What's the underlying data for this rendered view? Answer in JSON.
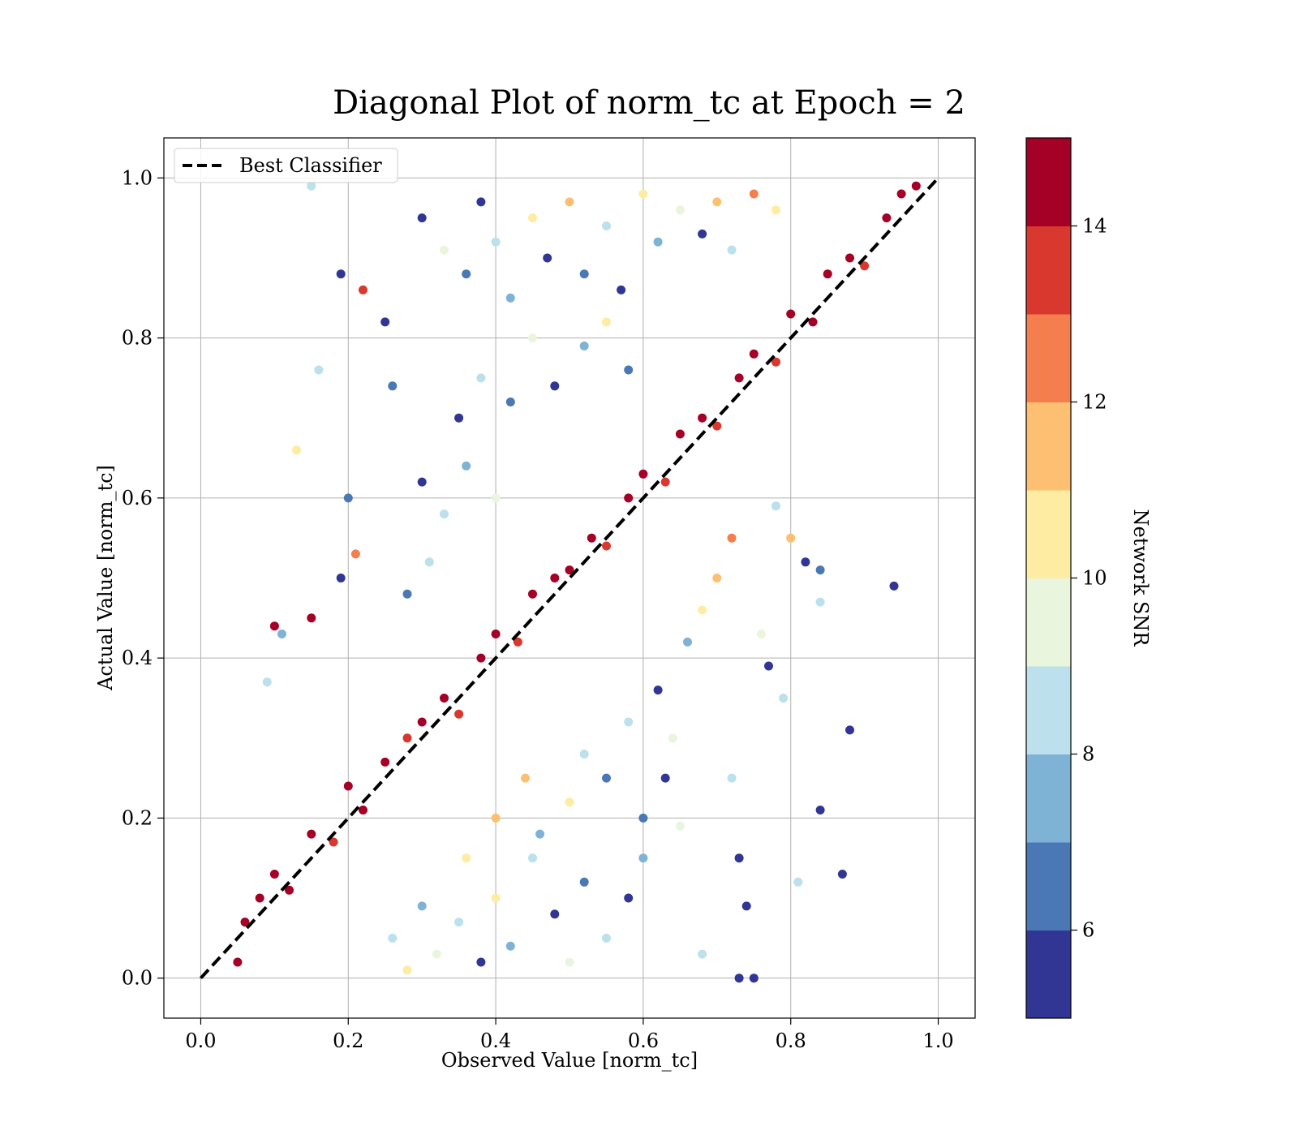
{
  "chart_data": {
    "type": "scatter",
    "title": "Diagonal Plot of norm_tc at Epoch = 2",
    "xlabel": "Observed Value [norm_tc]",
    "ylabel": "Actual Value [norm_tc]",
    "xlim": [
      -0.05,
      1.05
    ],
    "ylim": [
      -0.05,
      1.05
    ],
    "xticks": [
      0.0,
      0.2,
      0.4,
      0.6,
      0.8,
      1.0
    ],
    "yticks": [
      0.0,
      0.2,
      0.4,
      0.6,
      0.8,
      1.0
    ],
    "xtick_labels": [
      "0.0",
      "0.2",
      "0.4",
      "0.6",
      "0.8",
      "1.0"
    ],
    "ytick_labels": [
      "0.0",
      "0.2",
      "0.4",
      "0.6",
      "0.8",
      "1.0"
    ],
    "grid": true,
    "legend": {
      "placement": "upper-left",
      "entries": [
        "Best Classifier"
      ]
    },
    "reference_line": {
      "name": "Best Classifier",
      "style": "dashed",
      "color": "#000000",
      "x": [
        0.0,
        1.0
      ],
      "y": [
        0.0,
        1.0
      ]
    },
    "colorbar": {
      "label": "Network SNR",
      "range": [
        5,
        15
      ],
      "ticks": [
        6,
        8,
        10,
        12,
        14
      ],
      "tick_labels": [
        "6",
        "8",
        "10",
        "12",
        "14"
      ],
      "colors": [
        "#313695",
        "#4a78b5",
        "#7fb3d6",
        "#bce0ec",
        "#eaf5de",
        "#fdeca2",
        "#fdbf71",
        "#f57e4f",
        "#d8382e",
        "#a50026"
      ]
    },
    "series": [
      {
        "description": "scatter of predicted vs actual norm_tc colored by Network SNR; high-SNR points lie close to the diagonal, low-SNR points scatter widely",
        "points": [
          [
            0.05,
            0.02,
            14.8
          ],
          [
            0.06,
            0.07,
            14.6
          ],
          [
            0.08,
            0.1,
            14.9
          ],
          [
            0.1,
            0.13,
            14.2
          ],
          [
            0.12,
            0.11,
            14.7
          ],
          [
            0.15,
            0.18,
            14.5
          ],
          [
            0.18,
            0.17,
            13.6
          ],
          [
            0.2,
            0.24,
            14.9
          ],
          [
            0.22,
            0.21,
            14.3
          ],
          [
            0.25,
            0.27,
            14.8
          ],
          [
            0.28,
            0.3,
            13.8
          ],
          [
            0.3,
            0.32,
            14.7
          ],
          [
            0.33,
            0.35,
            14.9
          ],
          [
            0.35,
            0.33,
            13.2
          ],
          [
            0.38,
            0.4,
            14.6
          ],
          [
            0.4,
            0.43,
            14.8
          ],
          [
            0.43,
            0.42,
            13.9
          ],
          [
            0.45,
            0.48,
            14.7
          ],
          [
            0.48,
            0.5,
            14.9
          ],
          [
            0.5,
            0.51,
            14.4
          ],
          [
            0.53,
            0.55,
            14.8
          ],
          [
            0.55,
            0.54,
            13.5
          ],
          [
            0.58,
            0.6,
            14.9
          ],
          [
            0.6,
            0.63,
            14.6
          ],
          [
            0.63,
            0.62,
            13.7
          ],
          [
            0.65,
            0.68,
            14.8
          ],
          [
            0.68,
            0.7,
            14.9
          ],
          [
            0.7,
            0.69,
            13.4
          ],
          [
            0.73,
            0.75,
            14.7
          ],
          [
            0.75,
            0.78,
            14.9
          ],
          [
            0.78,
            0.77,
            13.9
          ],
          [
            0.8,
            0.83,
            14.8
          ],
          [
            0.83,
            0.82,
            14.2
          ],
          [
            0.85,
            0.88,
            14.9
          ],
          [
            0.88,
            0.9,
            14.6
          ],
          [
            0.9,
            0.89,
            13.6
          ],
          [
            0.93,
            0.95,
            14.8
          ],
          [
            0.95,
            0.98,
            14.9
          ],
          [
            0.97,
            0.99,
            14.5
          ],
          [
            0.15,
            0.99,
            8.2
          ],
          [
            0.19,
            0.88,
            5.3
          ],
          [
            0.22,
            0.86,
            13.4
          ],
          [
            0.25,
            0.82,
            5.5
          ],
          [
            0.26,
            0.74,
            6.1
          ],
          [
            0.13,
            0.66,
            10.8
          ],
          [
            0.2,
            0.6,
            6.4
          ],
          [
            0.21,
            0.53,
            12.8
          ],
          [
            0.19,
            0.5,
            5.6
          ],
          [
            0.15,
            0.45,
            14.5
          ],
          [
            0.1,
            0.44,
            14.6
          ],
          [
            0.11,
            0.43,
            7.2
          ],
          [
            0.09,
            0.37,
            8.3
          ],
          [
            0.16,
            0.76,
            8.1
          ],
          [
            0.3,
            0.95,
            5.4
          ],
          [
            0.33,
            0.91,
            9.1
          ],
          [
            0.36,
            0.88,
            6.8
          ],
          [
            0.38,
            0.97,
            5.2
          ],
          [
            0.4,
            0.92,
            8.4
          ],
          [
            0.42,
            0.85,
            7.6
          ],
          [
            0.45,
            0.95,
            10.4
          ],
          [
            0.47,
            0.9,
            5.3
          ],
          [
            0.5,
            0.97,
            11.6
          ],
          [
            0.52,
            0.88,
            6.5
          ],
          [
            0.55,
            0.94,
            8.7
          ],
          [
            0.57,
            0.86,
            5.8
          ],
          [
            0.6,
            0.98,
            10.2
          ],
          [
            0.62,
            0.92,
            7.4
          ],
          [
            0.65,
            0.96,
            9.6
          ],
          [
            0.68,
            0.93,
            5.5
          ],
          [
            0.7,
            0.97,
            11.8
          ],
          [
            0.72,
            0.91,
            8.9
          ],
          [
            0.75,
            0.98,
            12.2
          ],
          [
            0.78,
            0.96,
            10.6
          ],
          [
            0.35,
            0.7,
            5.7
          ],
          [
            0.38,
            0.75,
            8.1
          ],
          [
            0.42,
            0.72,
            6.9
          ],
          [
            0.45,
            0.8,
            9.3
          ],
          [
            0.48,
            0.74,
            5.4
          ],
          [
            0.52,
            0.79,
            7.8
          ],
          [
            0.55,
            0.82,
            10.1
          ],
          [
            0.58,
            0.76,
            6.3
          ],
          [
            0.3,
            0.62,
            5.9
          ],
          [
            0.33,
            0.58,
            8.6
          ],
          [
            0.36,
            0.64,
            7.1
          ],
          [
            0.4,
            0.6,
            9.8
          ],
          [
            0.28,
            0.48,
            6.6
          ],
          [
            0.31,
            0.52,
            8.8
          ],
          [
            0.94,
            0.49,
            5.2
          ],
          [
            0.88,
            0.31,
            5.6
          ],
          [
            0.84,
            0.21,
            5.3
          ],
          [
            0.87,
            0.13,
            5.4
          ],
          [
            0.81,
            0.12,
            8.2
          ],
          [
            0.84,
            0.47,
            8.6
          ],
          [
            0.82,
            0.52,
            5.5
          ],
          [
            0.84,
            0.51,
            6.2
          ],
          [
            0.8,
            0.55,
            11.4
          ],
          [
            0.78,
            0.59,
            8.9
          ],
          [
            0.76,
            0.43,
            9.4
          ],
          [
            0.79,
            0.35,
            8.3
          ],
          [
            0.77,
            0.39,
            5.7
          ],
          [
            0.72,
            0.25,
            8.1
          ],
          [
            0.73,
            0.15,
            5.8
          ],
          [
            0.74,
            0.09,
            5.4
          ],
          [
            0.73,
            0.0,
            5.3
          ],
          [
            0.75,
            0.0,
            5.9
          ],
          [
            0.68,
            0.03,
            8.2
          ],
          [
            0.65,
            0.19,
            9.6
          ],
          [
            0.63,
            0.25,
            5.5
          ],
          [
            0.6,
            0.15,
            7.3
          ],
          [
            0.58,
            0.1,
            5.6
          ],
          [
            0.55,
            0.05,
            8.4
          ],
          [
            0.52,
            0.12,
            6.7
          ],
          [
            0.5,
            0.02,
            9.1
          ],
          [
            0.48,
            0.08,
            5.4
          ],
          [
            0.45,
            0.15,
            8.8
          ],
          [
            0.42,
            0.04,
            7.2
          ],
          [
            0.4,
            0.1,
            10.3
          ],
          [
            0.38,
            0.02,
            5.8
          ],
          [
            0.35,
            0.07,
            8.6
          ],
          [
            0.32,
            0.03,
            9.7
          ],
          [
            0.3,
            0.09,
            7.9
          ],
          [
            0.28,
            0.01,
            10.6
          ],
          [
            0.26,
            0.05,
            8.3
          ],
          [
            0.55,
            0.25,
            6.1
          ],
          [
            0.58,
            0.32,
            8.7
          ],
          [
            0.62,
            0.36,
            5.6
          ],
          [
            0.66,
            0.42,
            7.8
          ],
          [
            0.68,
            0.46,
            10.2
          ],
          [
            0.64,
            0.3,
            9.3
          ],
          [
            0.6,
            0.2,
            6.9
          ],
          [
            0.52,
            0.28,
            8.1
          ],
          [
            0.5,
            0.22,
            10.8
          ],
          [
            0.46,
            0.18,
            7.4
          ],
          [
            0.44,
            0.25,
            11.3
          ],
          [
            0.7,
            0.5,
            11.6
          ],
          [
            0.72,
            0.55,
            12.4
          ],
          [
            0.4,
            0.2,
            11.9
          ],
          [
            0.36,
            0.15,
            10.7
          ]
        ]
      }
    ]
  }
}
